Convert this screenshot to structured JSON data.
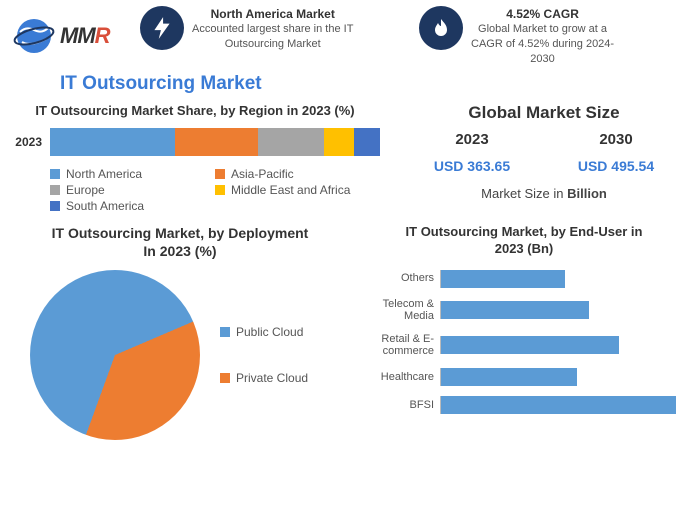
{
  "colors": {
    "accent_blue": "#3a7bd5",
    "series_blue": "#5b9bd5",
    "series_orange": "#ed7d31",
    "series_gray": "#a5a5a5",
    "series_yellow": "#ffc000",
    "series_darkblue": "#4472c4",
    "dark_navy": "#1e3760",
    "logo_m": "#333333",
    "logo_r": "#d94f3a",
    "text_main": "#333333",
    "text_sub": "#555555"
  },
  "logo": {
    "m1": "M",
    "m2": "M",
    "r": "R"
  },
  "badge1": {
    "title": "North America Market",
    "line1": "Accounted largest share in the IT",
    "line2": "Outsourcing Market"
  },
  "badge2": {
    "title": "4.52% CAGR",
    "line1": "Global Market to grow at a",
    "line2": "CAGR of 4.52% during 2024-",
    "line3": "2030"
  },
  "main_title": "IT Outsourcing Market",
  "stacked": {
    "title": "IT Outsourcing Market Share, by Region in 2023 (%)",
    "row_label": "2023",
    "segments": [
      {
        "label": "North America",
        "value": 38,
        "color": "#5b9bd5"
      },
      {
        "label": "Asia-Pacific",
        "value": 25,
        "color": "#ed7d31"
      },
      {
        "label": "Europe",
        "value": 20,
        "color": "#a5a5a5"
      },
      {
        "label": "Middle East and Africa",
        "value": 9,
        "color": "#ffc000"
      },
      {
        "label": "South America",
        "value": 8,
        "color": "#4472c4"
      }
    ]
  },
  "market_size": {
    "title": "Global Market Size",
    "year1": "2023",
    "year2": "2030",
    "val1": "USD 363.65",
    "val2": "USD 495.54",
    "unit_pre": "Market Size in ",
    "unit_bold": "Billion"
  },
  "pie": {
    "title_l1": "IT Outsourcing Market, by Deployment",
    "title_l2": "In 2023 (%)",
    "slices": [
      {
        "label": "Public Cloud",
        "value": 63,
        "color": "#5b9bd5"
      },
      {
        "label": "Private Cloud",
        "value": 37,
        "color": "#ed7d31"
      }
    ]
  },
  "endbar": {
    "title_l1": "IT Outsourcing Market, by End-User in",
    "title_l2": "2023 (Bn)",
    "max": 100,
    "bar_color": "#5b9bd5",
    "rows": [
      {
        "label": "Others",
        "value": 50
      },
      {
        "label": "Telecom & Media",
        "value": 60
      },
      {
        "label": "Retail & E-commerce",
        "value": 72
      },
      {
        "label": "Healthcare",
        "value": 55
      },
      {
        "label": "BFSI",
        "value": 95
      }
    ]
  }
}
